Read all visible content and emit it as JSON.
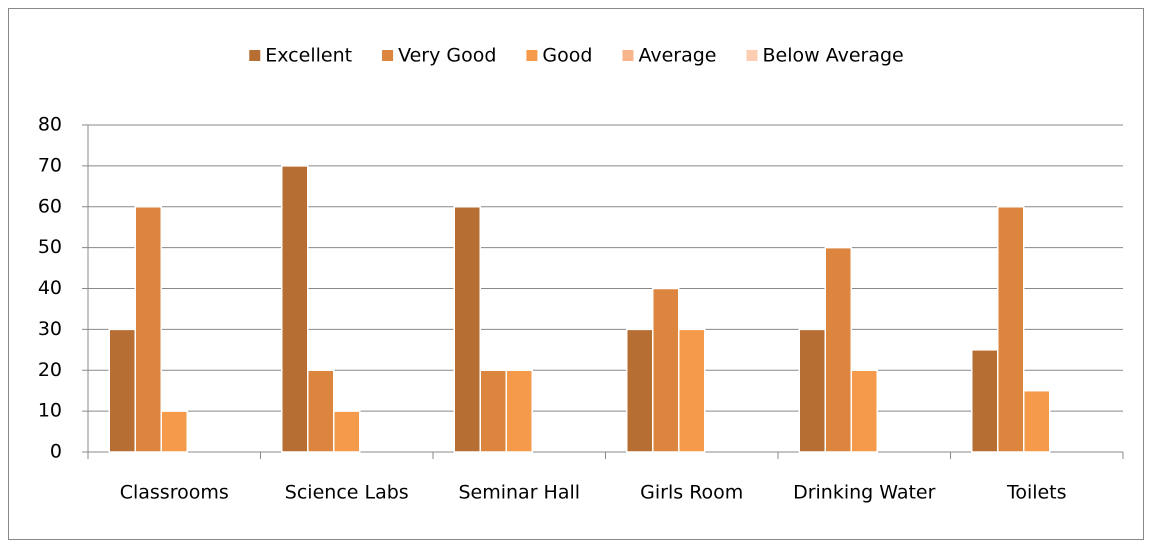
{
  "chart_data": {
    "type": "bar",
    "categories": [
      "Classrooms",
      "Science Labs",
      "Seminar Hall",
      "Girls Room",
      "Drinking Water",
      "Toilets"
    ],
    "series": [
      {
        "name": "Excellent",
        "color": "#b76e33",
        "values": [
          30,
          70,
          60,
          30,
          30,
          25
        ]
      },
      {
        "name": "Very Good",
        "color": "#dc853f",
        "values": [
          60,
          20,
          20,
          40,
          50,
          60
        ]
      },
      {
        "name": "Good",
        "color": "#f59a4a",
        "values": [
          10,
          10,
          20,
          30,
          20,
          15
        ]
      },
      {
        "name": "Average",
        "color": "#f8b48a",
        "values": [
          0,
          0,
          0,
          0,
          0,
          0
        ]
      },
      {
        "name": "Below Average",
        "color": "#fbcdb2",
        "values": [
          0,
          0,
          0,
          0,
          0,
          0
        ]
      }
    ],
    "ylim": [
      0,
      80
    ],
    "yticks": [
      0,
      10,
      20,
      30,
      40,
      50,
      60,
      70,
      80
    ],
    "grid": true,
    "legend": "top"
  }
}
